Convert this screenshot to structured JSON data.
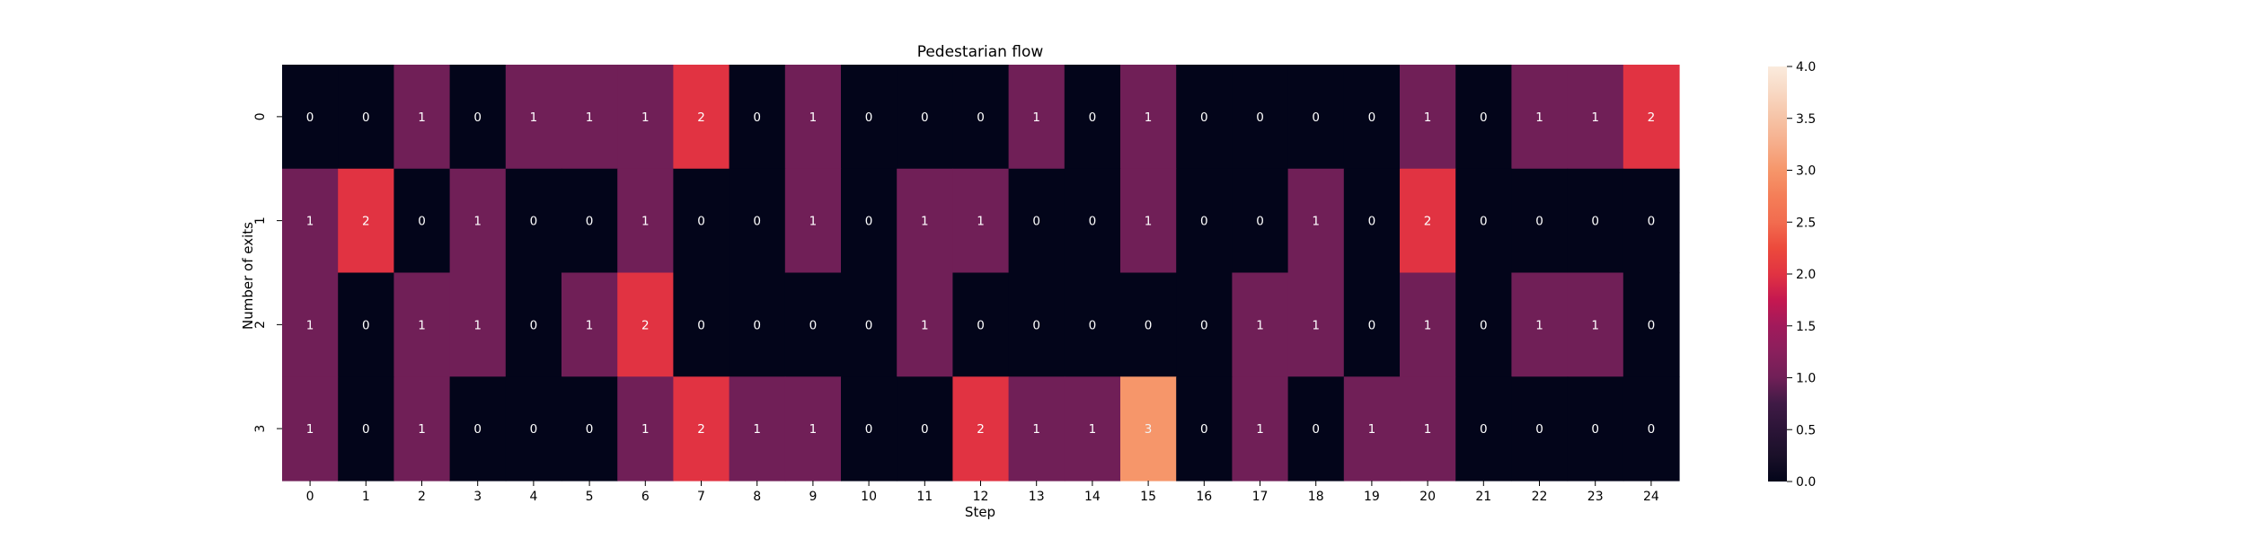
{
  "chart_data": {
    "type": "heatmap",
    "title": "Pedestarian flow",
    "xlabel": "Step",
    "ylabel": "Number of exits",
    "x_categories": [
      "0",
      "1",
      "2",
      "3",
      "4",
      "5",
      "6",
      "7",
      "8",
      "9",
      "10",
      "11",
      "12",
      "13",
      "14",
      "15",
      "16",
      "17",
      "18",
      "19",
      "20",
      "21",
      "22",
      "23",
      "24"
    ],
    "y_categories": [
      "0",
      "1",
      "2",
      "3"
    ],
    "values": [
      [
        0,
        0,
        1,
        0,
        1,
        1,
        1,
        2,
        0,
        1,
        0,
        0,
        0,
        1,
        0,
        1,
        0,
        0,
        0,
        0,
        1,
        0,
        1,
        1,
        2
      ],
      [
        1,
        2,
        0,
        1,
        0,
        0,
        1,
        0,
        0,
        1,
        0,
        1,
        1,
        0,
        0,
        1,
        0,
        0,
        1,
        0,
        2,
        0,
        0,
        0,
        0
      ],
      [
        1,
        0,
        1,
        1,
        0,
        1,
        2,
        0,
        0,
        0,
        0,
        1,
        0,
        0,
        0,
        0,
        0,
        1,
        1,
        0,
        1,
        0,
        1,
        1,
        0
      ],
      [
        1,
        0,
        1,
        0,
        0,
        0,
        1,
        2,
        1,
        1,
        0,
        0,
        2,
        1,
        1,
        3,
        0,
        1,
        0,
        1,
        1,
        0,
        0,
        0,
        0
      ]
    ],
    "annotate": true,
    "colorbar": {
      "min": 0,
      "max": 4,
      "ticks": [
        "0.0",
        "0.5",
        "1.0",
        "1.5",
        "2.0",
        "2.5",
        "3.0",
        "3.5",
        "4.0"
      ],
      "colormap": "rocket"
    },
    "colors": {
      "0": "#03051a",
      "1": "#701f57",
      "2": "#e13342",
      "3": "#f6966a"
    }
  }
}
